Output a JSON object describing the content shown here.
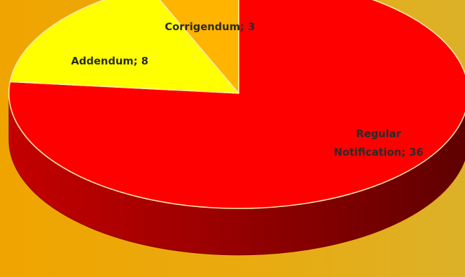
{
  "chart_data": {
    "type": "pie",
    "style": "3d",
    "labels": [
      "Regular Notification",
      "Addendum",
      "Corrigendum"
    ],
    "values": [
      36,
      8,
      3
    ],
    "data_labels": [
      "Regular\nNotification; 36",
      "Addendum; 8",
      "Corrigendum; 3"
    ],
    "colors": {
      "Regular Notification": "#ff0000",
      "Addendum": "#ffff00",
      "Corrigendum": "#ffb400"
    },
    "side_colors": {
      "Regular Notification": "#a80000"
    },
    "background": "#eea600",
    "label_color": "#2a2a2a",
    "start": "top",
    "direction": "clockwise",
    "legend": "none"
  }
}
